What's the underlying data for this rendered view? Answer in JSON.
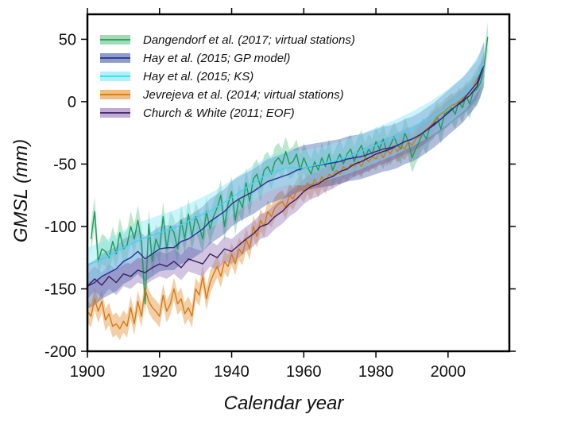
{
  "chart_data": {
    "type": "line",
    "title": "",
    "xlabel": "Calendar year",
    "ylabel": "GMSL (mm)",
    "xlim": [
      1900,
      2017
    ],
    "ylim": [
      -200,
      70
    ],
    "xticks": [
      1900,
      1920,
      1940,
      1960,
      1980,
      2000
    ],
    "yticks": [
      50,
      0,
      -50,
      -100,
      -150,
      -200
    ],
    "xtick_labels": [
      "1900",
      "1920",
      "1940",
      "1960",
      "1980",
      "2000"
    ],
    "ytick_labels": [
      "50",
      "0",
      "-50",
      "-100",
      "-150",
      "-200"
    ],
    "legend_position": "top-left",
    "series": [
      {
        "name": "Dangendorf et al. (2017; virtual stations)",
        "color": "#1a9e5a",
        "band_color": "#6cc98e",
        "band_opacity": 0.45,
        "uncertainty": 12,
        "x": [
          1901,
          1902,
          1903,
          1904,
          1905,
          1906,
          1907,
          1908,
          1909,
          1910,
          1911,
          1912,
          1913,
          1914,
          1915,
          1916,
          1917,
          1918,
          1919,
          1920,
          1921,
          1922,
          1923,
          1924,
          1925,
          1926,
          1927,
          1928,
          1929,
          1930,
          1931,
          1932,
          1933,
          1934,
          1935,
          1936,
          1937,
          1938,
          1939,
          1940,
          1941,
          1942,
          1943,
          1944,
          1945,
          1946,
          1947,
          1948,
          1949,
          1950,
          1951,
          1952,
          1953,
          1954,
          1955,
          1956,
          1957,
          1958,
          1959,
          1960,
          1961,
          1962,
          1963,
          1964,
          1965,
          1966,
          1967,
          1968,
          1969,
          1970,
          1971,
          1972,
          1973,
          1974,
          1975,
          1976,
          1977,
          1978,
          1979,
          1980,
          1981,
          1982,
          1983,
          1984,
          1985,
          1986,
          1987,
          1988,
          1989,
          1990,
          1991,
          1992,
          1993,
          1994,
          1995,
          1996,
          1997,
          1998,
          1999,
          2000,
          2001,
          2002,
          2003,
          2004,
          2005,
          2006,
          2007,
          2008,
          2009,
          2010,
          2011
        ],
        "y": [
          -110,
          -88,
          -128,
          -118,
          -120,
          -125,
          -112,
          -122,
          -105,
          -118,
          -115,
          -100,
          -110,
          -95,
          -112,
          -162,
          -98,
          -128,
          -110,
          -118,
          -92,
          -118,
          -100,
          -105,
          -118,
          -95,
          -110,
          -90,
          -108,
          -92,
          -100,
          -110,
          -88,
          -102,
          -92,
          -85,
          -75,
          -100,
          -82,
          -72,
          -95,
          -78,
          -85,
          -65,
          -80,
          -62,
          -58,
          -68,
          -55,
          -52,
          -58,
          -48,
          -45,
          -50,
          -40,
          -50,
          -48,
          -42,
          -55,
          -45,
          -52,
          -58,
          -48,
          -55,
          -45,
          -52,
          -42,
          -55,
          -48,
          -42,
          -50,
          -42,
          -38,
          -48,
          -40,
          -35,
          -45,
          -38,
          -42,
          -32,
          -38,
          -30,
          -40,
          -35,
          -28,
          -35,
          -38,
          -25,
          -32,
          -45,
          -38,
          -32,
          -25,
          -30,
          -20,
          -18,
          -12,
          -22,
          -10,
          -8,
          -5,
          -10,
          0,
          -5,
          5,
          -2,
          8,
          10,
          15,
          28,
          52
        ]
      },
      {
        "name": "Hay et al. (2015; GP model)",
        "color": "#2b2f8f",
        "band_color": "#3f5aa8",
        "band_opacity": 0.4,
        "uncertainty": 18,
        "x": [
          1900,
          1902,
          1904,
          1906,
          1908,
          1910,
          1912,
          1914,
          1916,
          1918,
          1920,
          1922,
          1924,
          1926,
          1928,
          1930,
          1932,
          1934,
          1936,
          1938,
          1940,
          1942,
          1944,
          1946,
          1948,
          1950,
          1952,
          1954,
          1956,
          1958,
          1960,
          1962,
          1964,
          1966,
          1968,
          1970,
          1972,
          1974,
          1976,
          1978,
          1980,
          1982,
          1984,
          1986,
          1988,
          1990,
          1992,
          1994,
          1996,
          1998,
          2000,
          2002,
          2004,
          2006,
          2008,
          2010
        ],
        "y": [
          -148,
          -145,
          -140,
          -137,
          -134,
          -128,
          -125,
          -120,
          -126,
          -122,
          -118,
          -117,
          -117,
          -112,
          -110,
          -106,
          -102,
          -96,
          -92,
          -88,
          -82,
          -78,
          -75,
          -72,
          -68,
          -64,
          -62,
          -60,
          -58,
          -55,
          -53,
          -52,
          -51,
          -50,
          -49,
          -48,
          -46,
          -45,
          -44,
          -42,
          -40,
          -38,
          -37,
          -35,
          -32,
          -30,
          -27,
          -23,
          -19,
          -14,
          -9,
          -4,
          1,
          8,
          15,
          30
        ]
      },
      {
        "name": "Hay et al. (2015; KS)",
        "color": "#3fd6f0",
        "band_color": "#8ce6f6",
        "band_opacity": 0.45,
        "uncertainty": 14,
        "x": [
          1900,
          1905,
          1910,
          1915,
          1920,
          1925,
          1930,
          1935,
          1940,
          1945,
          1950,
          1955,
          1960,
          1965,
          1970,
          1975,
          1980,
          1985,
          1990,
          1995,
          2000,
          2005,
          2010
        ],
        "y": [
          -131,
          -125,
          -117,
          -110,
          -105,
          -100,
          -93,
          -86,
          -77,
          -67,
          -58,
          -53,
          -53,
          -50,
          -46,
          -41,
          -35,
          -29,
          -22,
          -14,
          -4,
          8,
          30
        ]
      },
      {
        "name": "Jevrejeva et al. (2014; virtual stations)",
        "color": "#d67a16",
        "band_color": "#e9a85c",
        "band_opacity": 0.55,
        "uncertainty": 9,
        "x": [
          1900,
          1901,
          1902,
          1903,
          1904,
          1905,
          1906,
          1907,
          1908,
          1909,
          1910,
          1911,
          1912,
          1913,
          1914,
          1915,
          1916,
          1917,
          1918,
          1919,
          1920,
          1921,
          1922,
          1923,
          1924,
          1925,
          1926,
          1927,
          1928,
          1929,
          1930,
          1931,
          1932,
          1933,
          1934,
          1935,
          1936,
          1937,
          1938,
          1939,
          1940,
          1941,
          1942,
          1943,
          1944,
          1945,
          1946,
          1947,
          1948,
          1949,
          1950,
          1951,
          1952,
          1953,
          1954,
          1955,
          1956,
          1957,
          1958,
          1959,
          1960,
          1961,
          1962,
          1963,
          1964,
          1965,
          1966,
          1967,
          1968,
          1969,
          1970,
          1971,
          1972,
          1973,
          1974,
          1975,
          1976,
          1977,
          1978,
          1979,
          1980,
          1981,
          1982,
          1983,
          1984,
          1985,
          1986,
          1987,
          1988,
          1989,
          1990,
          1991,
          1992,
          1993,
          1994,
          1995,
          1996,
          1997,
          1998,
          1999,
          2000,
          2001,
          2002,
          2003,
          2004,
          2005,
          2006,
          2007,
          2008,
          2009,
          2010
        ],
        "y": [
          -168,
          -172,
          -158,
          -168,
          -160,
          -175,
          -170,
          -180,
          -178,
          -182,
          -176,
          -180,
          -165,
          -178,
          -160,
          -172,
          -150,
          -160,
          -165,
          -168,
          -172,
          -155,
          -168,
          -162,
          -150,
          -162,
          -158,
          -170,
          -165,
          -172,
          -150,
          -155,
          -140,
          -158,
          -145,
          -138,
          -132,
          -140,
          -128,
          -132,
          -122,
          -130,
          -118,
          -122,
          -110,
          -118,
          -100,
          -108,
          -95,
          -100,
          -88,
          -92,
          -85,
          -82,
          -80,
          -85,
          -75,
          -78,
          -72,
          -68,
          -72,
          -65,
          -70,
          -62,
          -68,
          -60,
          -65,
          -58,
          -60,
          -55,
          -58,
          -52,
          -55,
          -50,
          -52,
          -48,
          -52,
          -45,
          -48,
          -44,
          -46,
          -40,
          -45,
          -38,
          -42,
          -36,
          -40,
          -35,
          -38,
          -32,
          -35,
          -30,
          -28,
          -25,
          -22,
          -20,
          -16,
          -12,
          -10,
          -8,
          -5,
          -3,
          -2,
          0,
          3,
          5,
          8,
          12,
          18,
          22,
          28
        ]
      },
      {
        "name": "Church & White (2011; EOF)",
        "color": "#3a1f5e",
        "band_color": "#9c7ebf",
        "band_opacity": 0.45,
        "uncertainty": 10,
        "x": [
          1900,
          1902,
          1904,
          1906,
          1908,
          1910,
          1912,
          1914,
          1916,
          1918,
          1920,
          1922,
          1924,
          1926,
          1928,
          1930,
          1932,
          1934,
          1936,
          1938,
          1940,
          1942,
          1944,
          1946,
          1948,
          1950,
          1952,
          1954,
          1956,
          1958,
          1960,
          1962,
          1964,
          1966,
          1968,
          1970,
          1972,
          1974,
          1976,
          1978,
          1980,
          1982,
          1984,
          1986,
          1988,
          1990,
          1992,
          1994,
          1996,
          1998,
          2000,
          2002,
          2004,
          2006,
          2008,
          2010
        ],
        "y": [
          -148,
          -142,
          -147,
          -140,
          -145,
          -138,
          -140,
          -135,
          -137,
          -133,
          -130,
          -132,
          -128,
          -133,
          -126,
          -128,
          -130,
          -122,
          -125,
          -118,
          -120,
          -115,
          -110,
          -106,
          -100,
          -98,
          -92,
          -88,
          -82,
          -78,
          -72,
          -68,
          -66,
          -62,
          -60,
          -56,
          -54,
          -50,
          -48,
          -45,
          -42,
          -40,
          -38,
          -35,
          -32,
          -30,
          -27,
          -23,
          -18,
          -14,
          -9,
          -4,
          0,
          5,
          12,
          30
        ]
      }
    ]
  }
}
